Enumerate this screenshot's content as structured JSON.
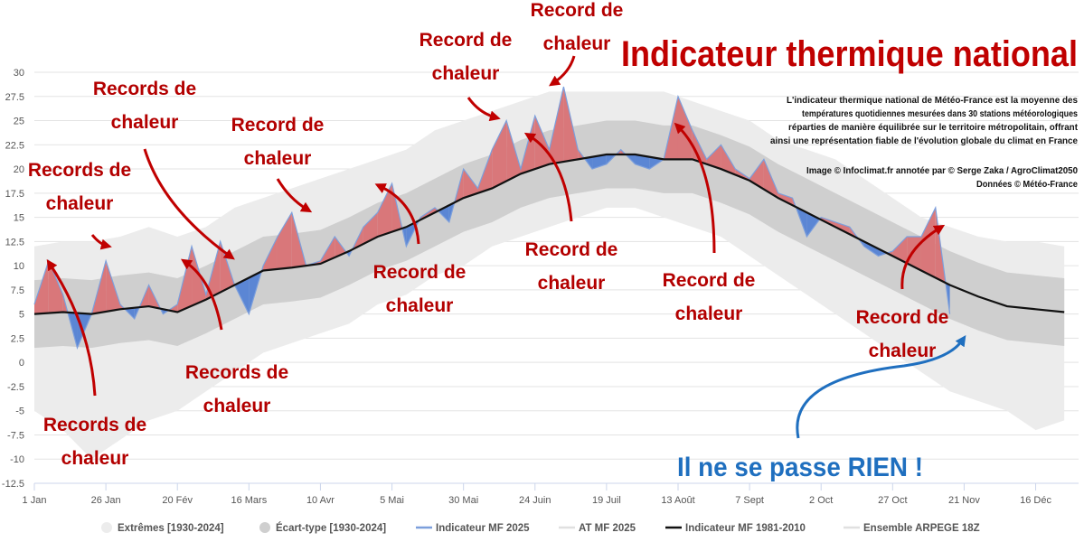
{
  "chart_data": {
    "type": "band_line",
    "title": "Indicateur thermique national",
    "description": [
      "L'indicateur thermique national de Météo-France est la moyenne des",
      "températures quotidiennes mesurées dans 30 stations météorologiques",
      "réparties de manière équilibrée sur le territoire métropolitain, offrant",
      "ainsi une représentation fiable de l'évolution globale du climat en France"
    ],
    "credits": [
      "Image © Infoclimat.fr annotée par © Serge Zaka / AgroClimat2050",
      "Données © Météo-France"
    ],
    "xlim": [
      0,
      365
    ],
    "xticks": [
      {
        "value": 0,
        "label": "1 Jan"
      },
      {
        "value": 25,
        "label": "26 Jan"
      },
      {
        "value": 50,
        "label": "20 Fév"
      },
      {
        "value": 75,
        "label": "16 Mars"
      },
      {
        "value": 100,
        "label": "10 Avr"
      },
      {
        "value": 125,
        "label": "5 Mai"
      },
      {
        "value": 150,
        "label": "30 Mai"
      },
      {
        "value": 175,
        "label": "24 Juin"
      },
      {
        "value": 200,
        "label": "19 Juil"
      },
      {
        "value": 225,
        "label": "13 Août"
      },
      {
        "value": 250,
        "label": "7 Sept"
      },
      {
        "value": 275,
        "label": "2 Oct"
      },
      {
        "value": 300,
        "label": "27 Oct"
      },
      {
        "value": 325,
        "label": "21 Nov"
      },
      {
        "value": 350,
        "label": "16 Déc"
      }
    ],
    "ylim": [
      -12.5,
      30
    ],
    "yticks": [
      30,
      27.5,
      25,
      22.5,
      20,
      17.5,
      15,
      12.5,
      10,
      7.5,
      5,
      2.5,
      0,
      -2.5,
      -5,
      -7.5,
      -10,
      -12.5
    ],
    "grid": true,
    "series": [
      {
        "name": "Extrêmes [1930-2024]",
        "kind": "band",
        "color": "#ececec",
        "x": [
          0,
          10,
          20,
          30,
          40,
          50,
          60,
          70,
          80,
          90,
          100,
          110,
          120,
          130,
          140,
          150,
          160,
          170,
          180,
          190,
          200,
          210,
          220,
          230,
          240,
          250,
          260,
          270,
          280,
          290,
          300,
          310,
          320,
          330,
          340,
          350,
          360
        ],
        "low": [
          -5,
          -7,
          -10,
          -8,
          -6,
          -5,
          -3,
          -1,
          1,
          2,
          3,
          4,
          6,
          7,
          9,
          10,
          12,
          13,
          14,
          15,
          16,
          16,
          15,
          14,
          13,
          11,
          9,
          7,
          5,
          3,
          1,
          -1,
          -3,
          -4,
          -5,
          -7,
          -6
        ],
        "high": [
          12,
          12.5,
          12.5,
          13,
          14,
          13,
          14,
          16,
          17,
          18,
          19,
          20,
          21,
          22,
          24,
          25,
          26,
          27,
          28,
          28,
          28,
          28,
          28,
          27,
          26,
          25,
          23,
          22,
          21,
          19,
          17,
          15,
          14,
          13,
          12.5,
          12.5,
          12
        ]
      },
      {
        "name": "Écart-type [1930-2024]",
        "kind": "band",
        "color": "#cfcfcf",
        "x": [
          0,
          10,
          20,
          30,
          40,
          50,
          60,
          70,
          80,
          90,
          100,
          110,
          120,
          130,
          140,
          150,
          160,
          170,
          180,
          190,
          200,
          210,
          220,
          230,
          240,
          250,
          260,
          270,
          280,
          290,
          300,
          310,
          320,
          330,
          340,
          350,
          360
        ],
        "low": [
          1.5,
          1.7,
          1.5,
          2,
          2.3,
          1.7,
          3,
          4.5,
          6,
          6.3,
          6.7,
          8,
          9.5,
          10.5,
          12,
          13.5,
          14.5,
          16,
          17,
          17.5,
          18,
          18,
          17.5,
          17.5,
          16.5,
          15.3,
          13.5,
          12,
          10.5,
          9,
          7.5,
          6,
          4.5,
          3.3,
          2.3,
          2,
          1.7
        ],
        "high": [
          8.5,
          8.7,
          8.5,
          9,
          9.3,
          8.7,
          10,
          11.5,
          13,
          13.3,
          13.7,
          15,
          16.5,
          17.5,
          19,
          20.5,
          21.5,
          23,
          24,
          24.5,
          25,
          25,
          24.5,
          24.5,
          23.5,
          22.3,
          20.5,
          19,
          17.5,
          16,
          14.5,
          13,
          11.5,
          10.3,
          9.3,
          9,
          8.7
        ]
      },
      {
        "name": "Indicateur MF 2025",
        "kind": "anomaly",
        "color": "#7c9fdc",
        "above_color": "#d9777a",
        "below_color": "#5b86d4",
        "x": [
          0,
          5,
          10,
          15,
          20,
          25,
          30,
          35,
          40,
          45,
          50,
          55,
          60,
          65,
          70,
          75,
          80,
          85,
          90,
          95,
          100,
          105,
          110,
          115,
          120,
          125,
          130,
          135,
          140,
          145,
          150,
          155,
          160,
          165,
          170,
          175,
          180,
          185,
          190,
          195,
          200,
          205,
          210,
          215,
          220,
          225,
          230,
          235,
          240,
          245,
          250,
          255,
          260,
          265,
          270,
          275,
          280,
          285,
          290,
          295,
          300,
          305,
          310,
          315,
          320
        ],
        "values": [
          6,
          10.5,
          7,
          1.5,
          5,
          10.5,
          6,
          4.5,
          8,
          5,
          6,
          12,
          7,
          12.5,
          8,
          5,
          10,
          13,
          15.5,
          10,
          10.5,
          13,
          11,
          14,
          15.5,
          18.5,
          12,
          15,
          16,
          14.5,
          20,
          18,
          22,
          25,
          20,
          25.5,
          22,
          28.5,
          22,
          20,
          20.5,
          22,
          20.5,
          20,
          21,
          27.5,
          24,
          21,
          22.5,
          20,
          19,
          21,
          17.5,
          17,
          13,
          15,
          14.5,
          14,
          12,
          11,
          11.5,
          13,
          13,
          16,
          5
        ]
      },
      {
        "name": "Indicateur MF 1981-2010",
        "kind": "line",
        "color": "#111111",
        "x": [
          0,
          10,
          20,
          30,
          40,
          50,
          60,
          70,
          80,
          90,
          100,
          110,
          120,
          130,
          140,
          150,
          160,
          170,
          180,
          190,
          200,
          210,
          220,
          230,
          240,
          250,
          260,
          270,
          280,
          290,
          300,
          310,
          320,
          330,
          340,
          350,
          360
        ],
        "values": [
          5,
          5.2,
          5,
          5.5,
          5.8,
          5.2,
          6.5,
          8,
          9.5,
          9.8,
          10.2,
          11.5,
          13,
          14,
          15.5,
          17,
          18,
          19.5,
          20.5,
          21,
          21.5,
          21.5,
          21,
          21,
          20,
          18.8,
          17,
          15.5,
          14,
          12.5,
          11,
          9.5,
          8,
          6.8,
          5.8,
          5.5,
          5.2
        ]
      }
    ],
    "other_legend": [
      "AT MF 2025",
      "Ensemble ARPEGE 18Z"
    ],
    "annotations": [
      [
        "Records de",
        "chaleur"
      ],
      [
        "Records de",
        "chaleur"
      ],
      [
        "Record de",
        "chaleur"
      ],
      [
        "Record de",
        "chaleur"
      ],
      [
        "Record de",
        "chaleur"
      ],
      [
        "Records de",
        "chaleur"
      ],
      [
        "Records de",
        "chaleur"
      ],
      [
        "Record de",
        "chaleur"
      ],
      [
        "Record de",
        "chaleur"
      ],
      [
        "Record de",
        "chaleur"
      ],
      [
        "Record de",
        "chaleur"
      ]
    ],
    "callout": "Il ne se passe RIEN !"
  }
}
